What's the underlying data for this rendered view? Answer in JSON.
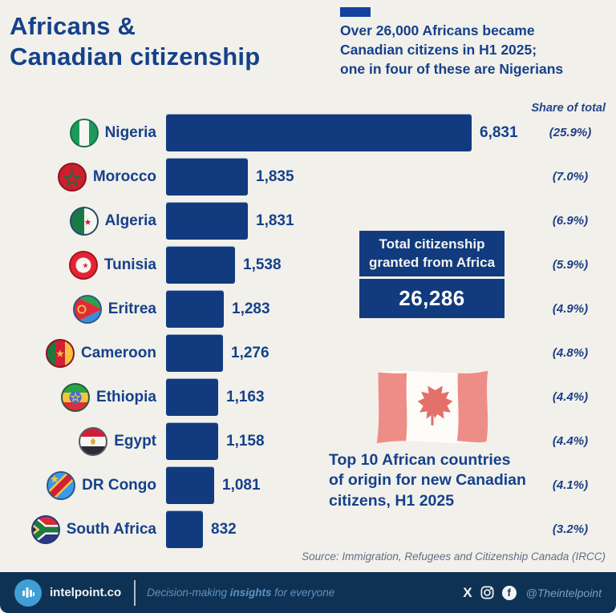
{
  "header": {
    "title": "Africans &\nCanadian citizenship",
    "subtitle": "Over 26,000 Africans became\nCanadian citizens in H1 2025;\none in four of these are Nigerians"
  },
  "chart_data": {
    "type": "bar",
    "orientation": "horizontal",
    "title": "Top 10 African countries of origin for new Canadian citizens, H1 2025",
    "share_of_total_label": "Share of total",
    "max_value": 6831,
    "categories": [
      "Nigeria",
      "Morocco",
      "Algeria",
      "Tunisia",
      "Eritrea",
      "Cameroon",
      "Ethiopia",
      "Egypt",
      "DR Congo",
      "South Africa"
    ],
    "values": [
      6831,
      1835,
      1831,
      1538,
      1283,
      1276,
      1163,
      1158,
      1081,
      832
    ],
    "rows": [
      {
        "country": "Nigeria",
        "value": 6831,
        "value_label": "6,831",
        "share": "(25.9%)",
        "flag": "nigeria"
      },
      {
        "country": "Morocco",
        "value": 1835,
        "value_label": "1,835",
        "share": "(7.0%)",
        "flag": "morocco"
      },
      {
        "country": "Algeria",
        "value": 1831,
        "value_label": "1,831",
        "share": "(6.9%)",
        "flag": "algeria"
      },
      {
        "country": "Tunisia",
        "value": 1538,
        "value_label": "1,538",
        "share": "(5.9%)",
        "flag": "tunisia"
      },
      {
        "country": "Eritrea",
        "value": 1283,
        "value_label": "1,283",
        "share": "(4.9%)",
        "flag": "eritrea"
      },
      {
        "country": "Cameroon",
        "value": 1276,
        "value_label": "1,276",
        "share": "(4.8%)",
        "flag": "cameroon"
      },
      {
        "country": "Ethiopia",
        "value": 1163,
        "value_label": "1,163",
        "share": "(4.4%)",
        "flag": "ethiopia"
      },
      {
        "country": "Egypt",
        "value": 1158,
        "value_label": "1,158",
        "share": "(4.4%)",
        "flag": "egypt"
      },
      {
        "country": "DR Congo",
        "value": 1081,
        "value_label": "1,081",
        "share": "(4.1%)",
        "flag": "drcongo"
      },
      {
        "country": "South Africa",
        "value": 832,
        "value_label": "832",
        "share": "(3.2%)",
        "flag": "southafrica"
      }
    ],
    "total_label": "Total citizenship\ngranted from Africa",
    "total_value": "26,286"
  },
  "annotations": {
    "caption": "Top 10 African countries\nof origin for new Canadian\ncitizens, H1 2025",
    "source": "Source: Immigration, Refugees and Citizenship Canada (IRCC)"
  },
  "footer": {
    "brand": "intelpoint.co",
    "tagline_pre": "Decision-making ",
    "tagline_bold": "insights",
    "tagline_post": " for everyone",
    "x_glyph": "X",
    "fb_glyph": "f",
    "handle": "@Theintelpoint"
  },
  "colors": {
    "background": "#f2f0ea",
    "navy_text": "#15418c",
    "bar": "#113b7e",
    "footer_bg": "#0e3253",
    "logo_blue": "#3f9ed6",
    "canada_red": "#ee8d87"
  }
}
